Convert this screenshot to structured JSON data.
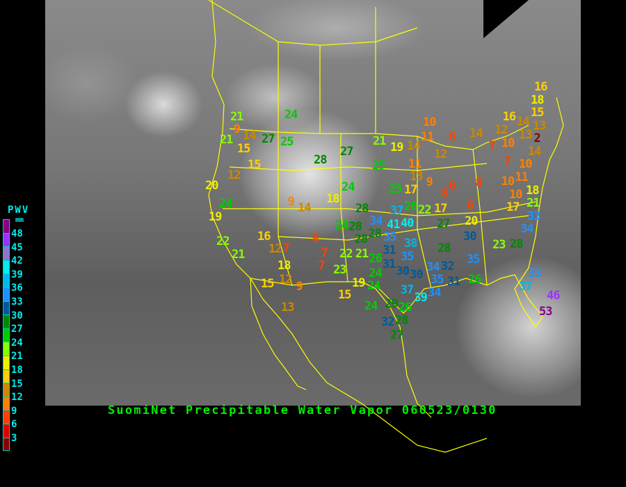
{
  "title": "SuomiNet Precipitable Water Vapor 060523/0130",
  "legend": {
    "title": "PWV",
    "unit": "mm",
    "ticks": [
      "48",
      "45",
      "42",
      "39",
      "36",
      "33",
      "30",
      "27",
      "24",
      "21",
      "18",
      "15",
      "12",
      "9",
      "6",
      "3"
    ],
    "bands_top_to_bottom": [
      "#880088",
      "#9933ff",
      "#8877cc",
      "#00eeee",
      "#00b8e8",
      "#2090ff",
      "#005a99",
      "#008800",
      "#00cc00",
      "#88ff00",
      "#eeee00",
      "#ffd000",
      "#cc8800",
      "#ff8000",
      "#ff4000",
      "#dd0000",
      "#880000"
    ]
  },
  "colors": {
    "title": "#00ee00",
    "legend_text": "#00eeee",
    "borders": "#ffff00",
    "background": "#000000"
  },
  "stations": [
    21,
    9,
    21,
    14,
    15,
    27,
    25,
    24,
    28,
    27,
    15,
    12,
    20,
    24,
    21,
    25,
    24,
    18,
    9,
    14,
    19,
    22,
    21,
    16,
    12,
    7,
    18,
    12,
    15,
    9,
    13,
    8,
    7,
    7,
    23,
    22,
    21,
    24,
    28,
    28,
    28,
    28,
    19,
    24,
    15,
    24,
    29,
    26,
    32,
    28,
    27,
    37,
    39,
    34,
    26,
    24,
    31,
    30,
    30,
    31,
    38,
    35,
    35,
    34,
    37,
    40,
    41,
    26,
    22,
    17,
    27,
    28,
    34,
    35,
    32,
    31,
    35,
    26,
    30,
    20,
    6,
    17,
    21,
    33,
    34,
    23,
    28,
    33,
    37,
    46,
    53,
    10,
    11,
    6,
    14,
    19,
    12,
    11,
    13,
    9,
    17,
    25,
    6,
    8,
    8,
    14,
    12,
    10,
    7,
    16,
    15,
    13,
    7,
    10,
    11,
    14,
    10,
    10,
    18,
    16,
    18,
    14,
    13,
    2
  ]
}
